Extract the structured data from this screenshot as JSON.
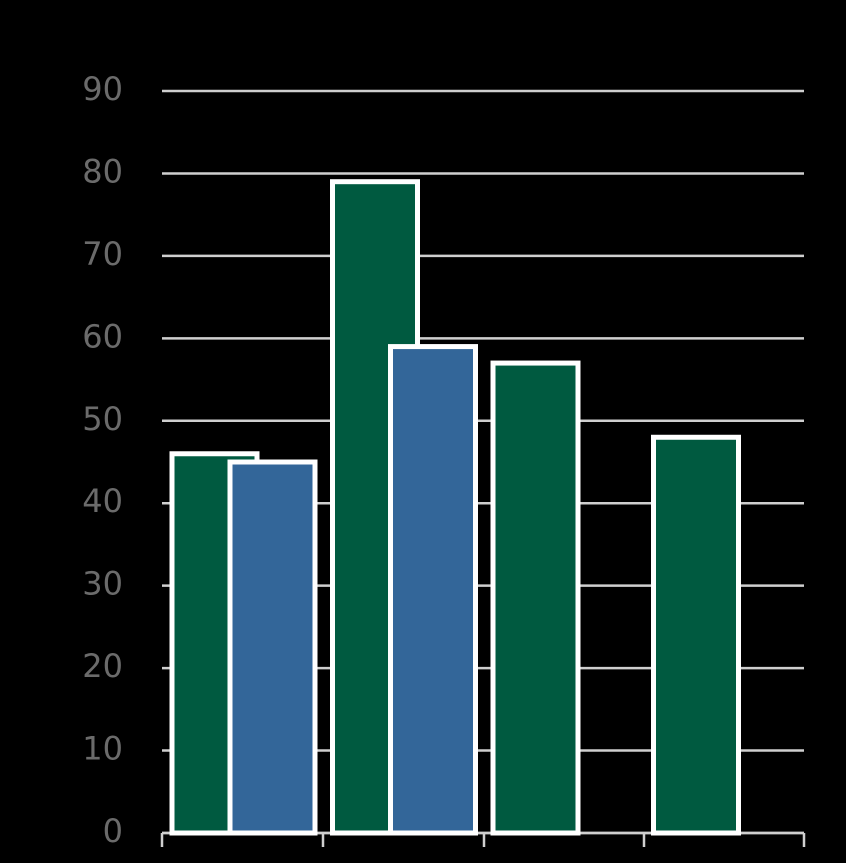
{
  "chart_data": {
    "type": "bar",
    "categories": [
      null,
      null,
      null,
      null
    ],
    "series": [
      {
        "color": "#005a40",
        "values": [
          46,
          79,
          57,
          48
        ]
      },
      {
        "color": "#336699",
        "values": [
          45,
          59,
          null,
          null
        ]
      }
    ],
    "ylim": [
      0,
      90
    ],
    "yticks": [
      0,
      10,
      20,
      30,
      40,
      50,
      60,
      70,
      80,
      90
    ],
    "grid": true
  }
}
